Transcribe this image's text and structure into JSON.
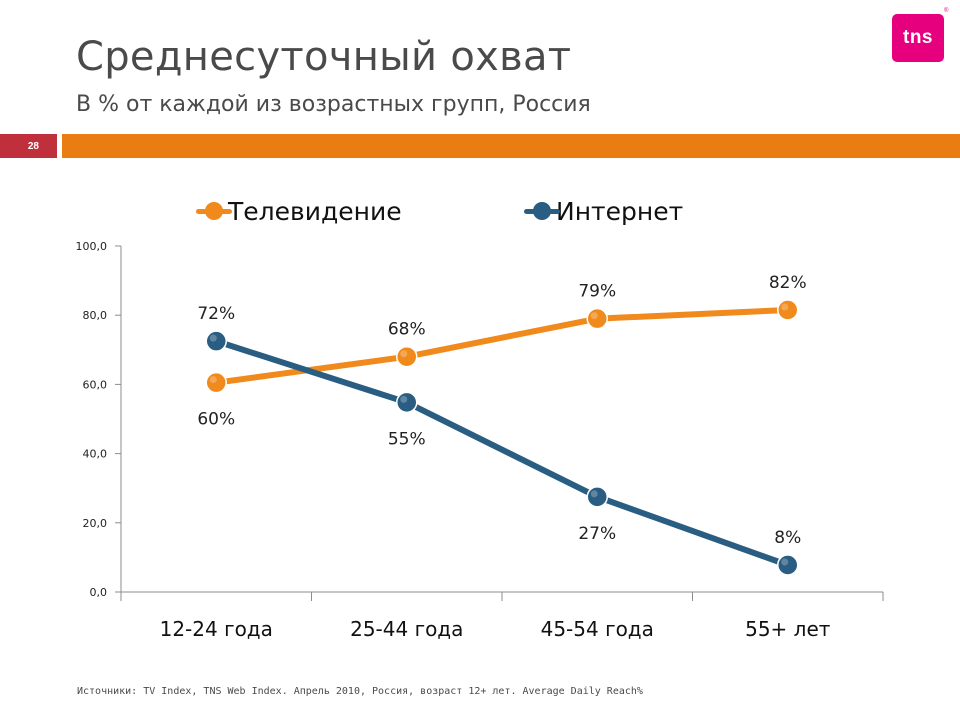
{
  "header": {
    "title": "Среднесуточный охват",
    "subtitle": "В % от каждой из возрастных групп, Россия",
    "page_number": "28",
    "logo_text": "tns",
    "logo_tm": "®"
  },
  "colors": {
    "accent_orange": "#ea7d12",
    "page_badge": "#c0303c",
    "logo_magenta": "#e6007e",
    "tv_series": "#f08a1c",
    "internet_series": "#2a5d82"
  },
  "legend": {
    "tv": "Телевидение",
    "internet": "Интернет"
  },
  "chart_data": {
    "type": "line",
    "categories": [
      "12-24 года",
      "25-44 года",
      "45-54 года",
      "55+ лет"
    ],
    "ylim": [
      0,
      100
    ],
    "yticks": [
      "0,0",
      "20,0",
      "40,0",
      "60,0",
      "80,0",
      "100,0"
    ],
    "grid": false,
    "legend_position": "top",
    "series": [
      {
        "name": "Телевидение",
        "color": "#f08a1c",
        "values": [
          60.5,
          68.0,
          79.0,
          81.5
        ],
        "labels": [
          "60%",
          "68%",
          "79%",
          "82%"
        ],
        "label_positions": [
          "below",
          "above",
          "above",
          "above"
        ]
      },
      {
        "name": "Интернет",
        "color": "#2a5d82",
        "values": [
          72.5,
          54.8,
          27.5,
          7.8
        ],
        "labels": [
          "72%",
          "55%",
          "27%",
          "8%"
        ],
        "label_positions": [
          "above",
          "below",
          "below",
          "above"
        ]
      }
    ]
  },
  "footer": {
    "source": "Источники: TV Index, TNS Web Index. Апрель 2010, Россия, возраст 12+ лет. Average Daily Reach%"
  }
}
